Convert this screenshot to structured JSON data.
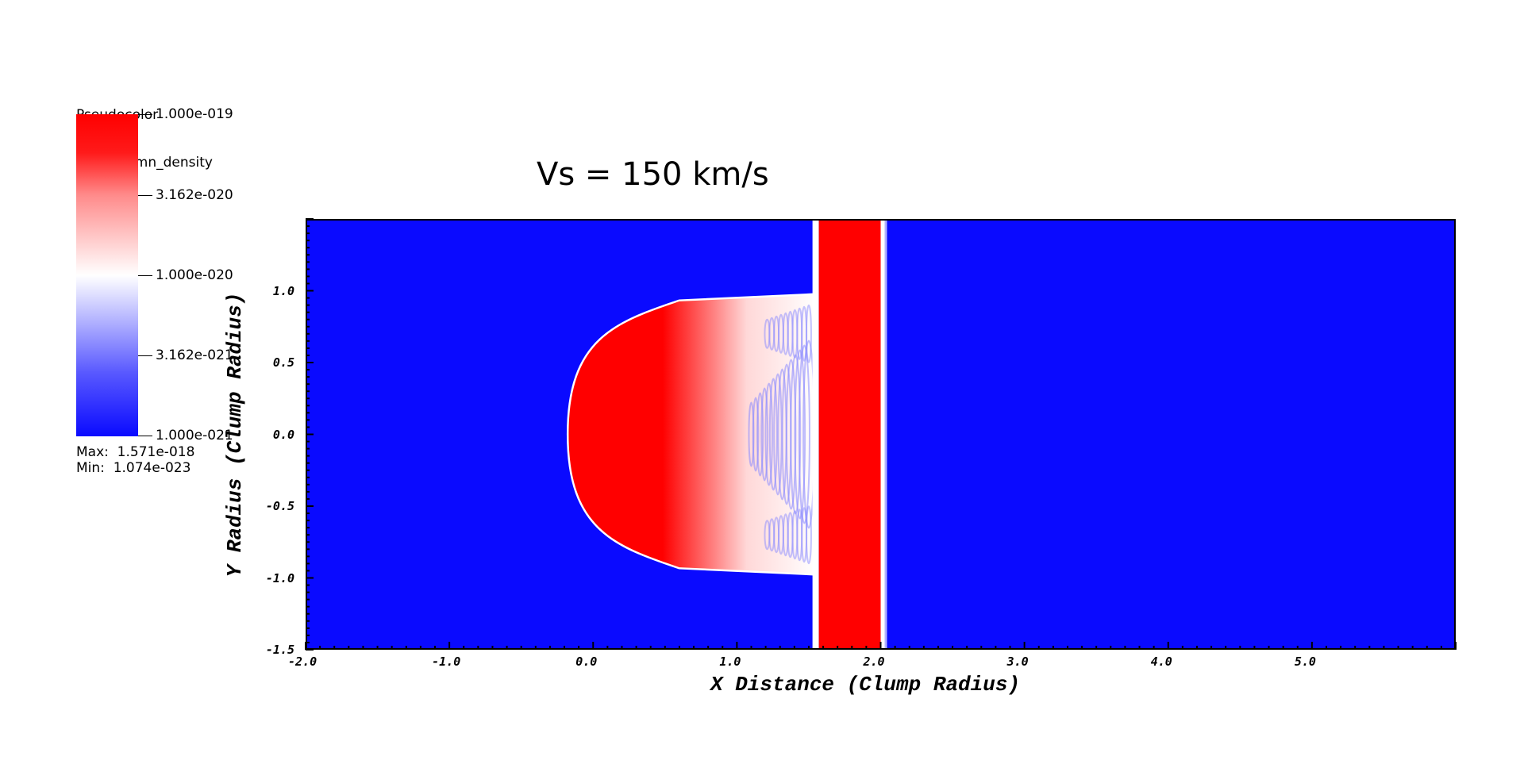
{
  "chart_data": {
    "type": "heatmap",
    "title": "Vs = 150 km/s",
    "xlabel": "X Distance (Clump Radius)",
    "ylabel": "Y Radius (Clump Radius)",
    "xlim": [
      -2.0,
      6.0
    ],
    "ylim": [
      -1.5,
      1.5
    ],
    "x_ticks": [
      "-2.0",
      "-1.0",
      "0.0",
      "1.0",
      "2.0",
      "3.0",
      "4.0",
      "5.0"
    ],
    "x_tick_values": [
      -2.0,
      -1.0,
      0.0,
      1.0,
      2.0,
      3.0,
      4.0,
      5.0
    ],
    "y_ticks": [
      "-1.5",
      "-1.0",
      "-0.5",
      "0.0",
      "0.5",
      "1.0"
    ],
    "y_tick_values": [
      -1.5,
      -1.0,
      -0.5,
      0.0,
      0.5,
      1.0
    ],
    "colorscale": "log",
    "colormap": [
      "#0000ff",
      "#ffffff",
      "#ff0000"
    ],
    "features": {
      "clump": {
        "left_edge_x": -0.17,
        "right_edge_x": 1.55,
        "half_height": 0.97,
        "cap_x": 0.6
      },
      "shock_band": {
        "x_from": 1.57,
        "x_to": 2.0
      }
    }
  },
  "legend": {
    "title_line1": "Pseudocolor",
    "title_line2": "Var: column_density",
    "labels": [
      "1.000e-019",
      "3.162e-020",
      "1.000e-020",
      "3.162e-021",
      "1.000e-021"
    ],
    "max_text": "Max:  1.571e-018",
    "min_text": "Min:  1.074e-023"
  },
  "colors": {
    "background": "#0a0aff",
    "high": "#ff0000",
    "mid": "#ffffff"
  }
}
